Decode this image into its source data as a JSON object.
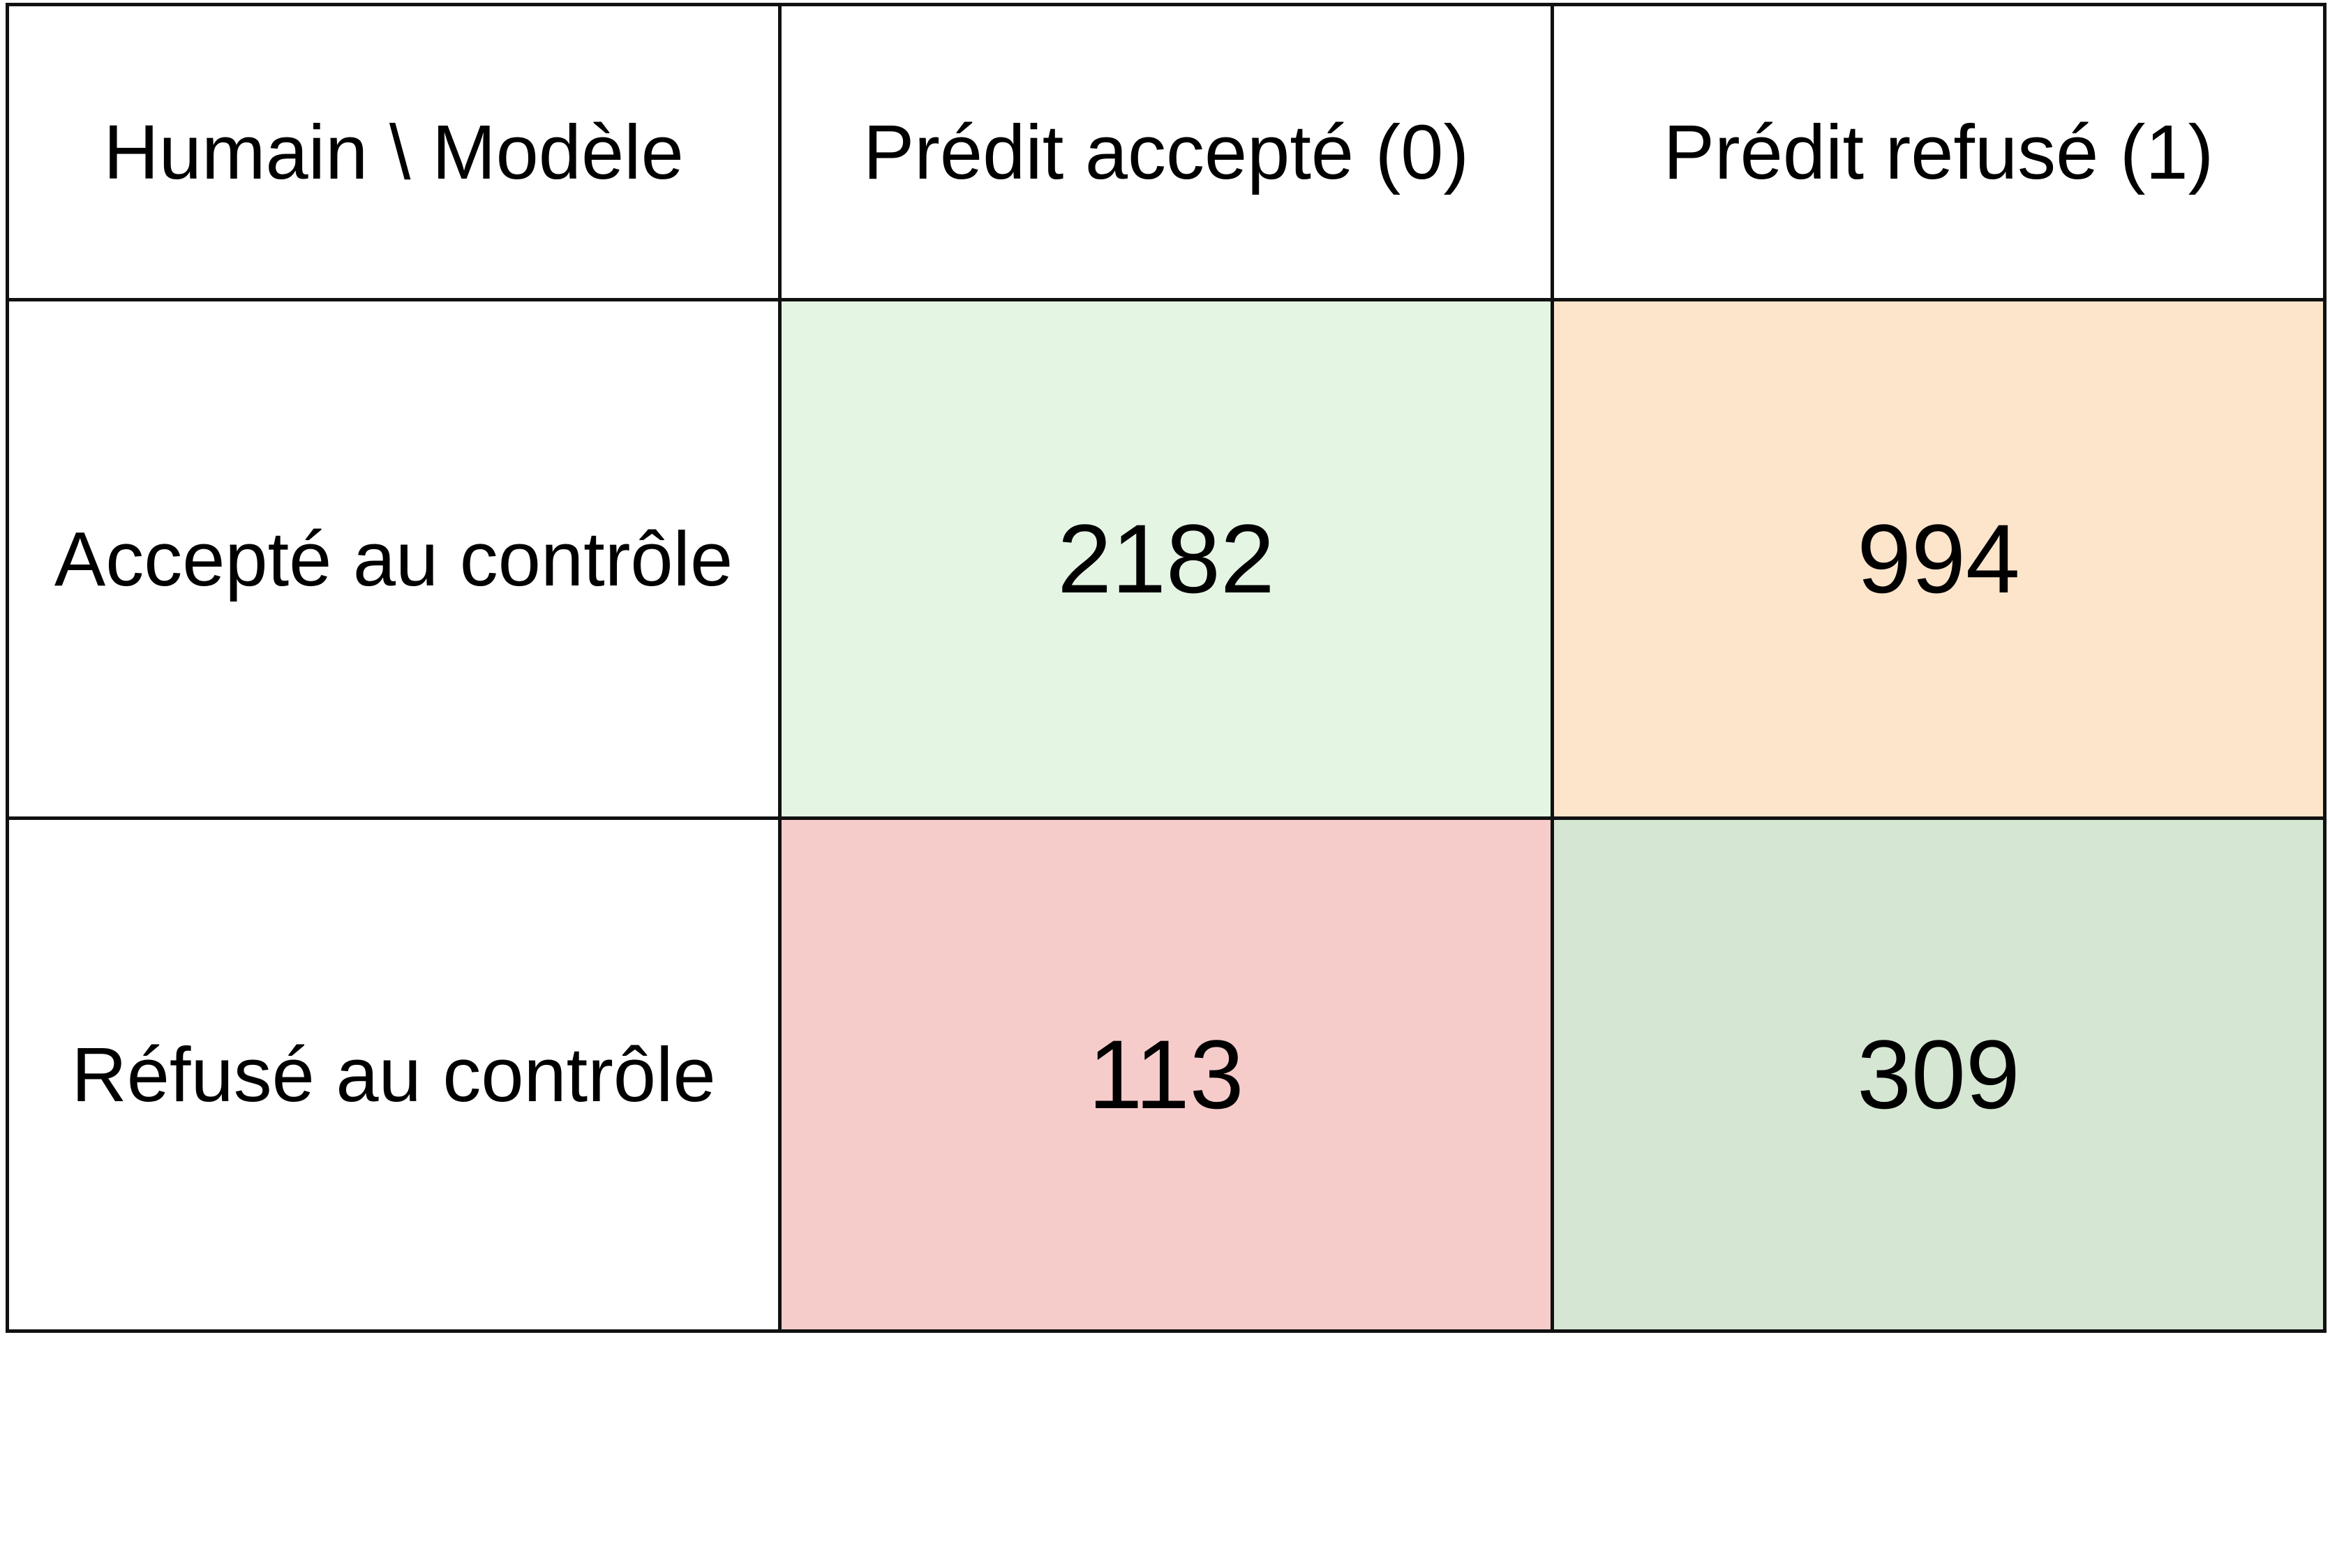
{
  "chart_data": {
    "type": "table",
    "corner_label": "Humain \\ Modèle",
    "columns": [
      "Prédit accepté (0)",
      "Prédit refusé (1)"
    ],
    "rows": [
      {
        "label": "Accepté au contrôle",
        "values": [
          2182,
          994
        ]
      },
      {
        "label": "Réfusé au contrôle",
        "values": [
          113,
          309
        ]
      }
    ],
    "cell_colors": [
      [
        "#e5f5e4",
        "#fde5cc"
      ],
      [
        "#f6cccb",
        "#d5e7d3"
      ]
    ]
  }
}
